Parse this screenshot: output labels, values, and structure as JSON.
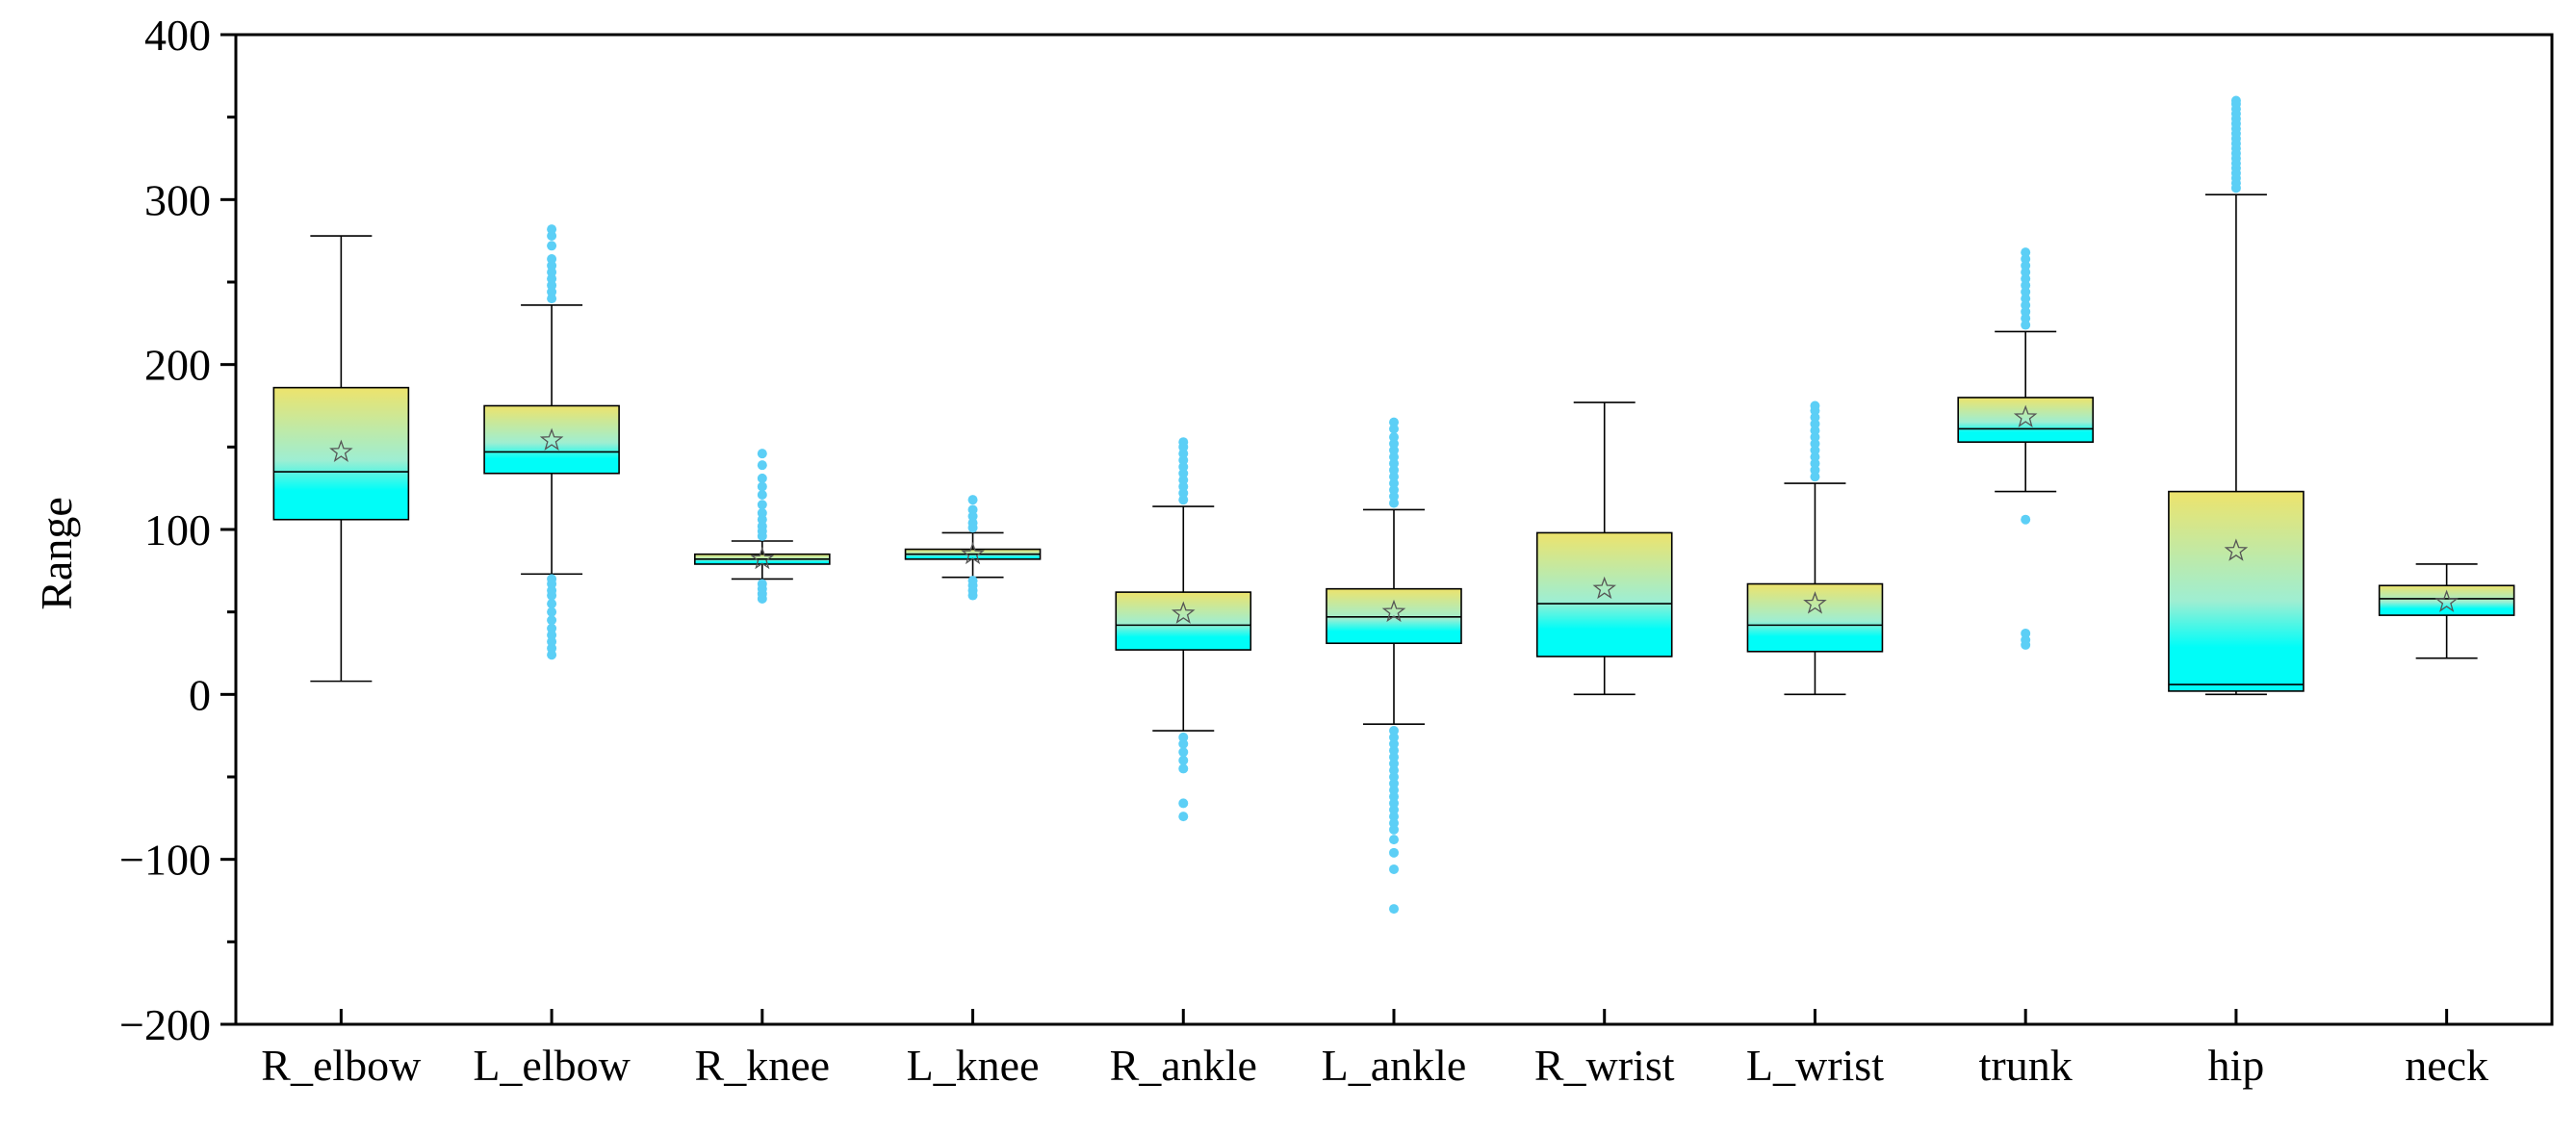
{
  "chart_data": {
    "type": "box",
    "title": "",
    "xlabel": "",
    "ylabel": "Range",
    "ylim": [
      -200,
      400
    ],
    "yticks": [
      "−200",
      "−100",
      "0",
      "100",
      "200",
      "300",
      "400"
    ],
    "ytick_values": [
      -200,
      -100,
      0,
      100,
      200,
      300,
      400
    ],
    "categories": [
      "R_elbow",
      "L_elbow",
      "R_knee",
      "L_knee",
      "R_ankle",
      "L_ankle",
      "R_wrist",
      "L_wrist",
      "trunk",
      "hip",
      "neck"
    ],
    "series": [
      {
        "name": "R_elbow",
        "whisker_low": 8,
        "q1": 106,
        "median": 135,
        "q3": 186,
        "whisker_high": 278,
        "mean": 147,
        "outliers": []
      },
      {
        "name": "L_elbow",
        "whisker_low": 73,
        "q1": 134,
        "median": 147,
        "q3": 175,
        "whisker_high": 236,
        "mean": 154,
        "outliers": [
          24,
          28,
          32,
          36,
          40,
          45,
          50,
          55,
          60,
          63,
          67,
          70,
          240,
          244,
          248,
          252,
          256,
          260,
          264,
          272,
          278,
          282
        ]
      },
      {
        "name": "R_knee",
        "whisker_low": 70,
        "q1": 79,
        "median": 82,
        "q3": 85,
        "whisker_high": 93,
        "mean": 82,
        "outliers": [
          58,
          61,
          64,
          67,
          96,
          99,
          102,
          106,
          110,
          115,
          121,
          126,
          131,
          139,
          146
        ]
      },
      {
        "name": "L_knee",
        "whisker_low": 71,
        "q1": 82,
        "median": 85,
        "q3": 88,
        "whisker_high": 98,
        "mean": 85,
        "outliers": [
          60,
          63,
          66,
          69,
          101,
          104,
          108,
          112,
          118
        ]
      },
      {
        "name": "R_ankle",
        "whisker_low": -22,
        "q1": 27,
        "median": 42,
        "q3": 62,
        "whisker_high": 114,
        "mean": 49,
        "outliers": [
          -74,
          -66,
          -45,
          -40,
          -35,
          -30,
          -26,
          118,
          122,
          126,
          130,
          134,
          138,
          142,
          146,
          150,
          153
        ]
      },
      {
        "name": "L_ankle",
        "whisker_low": -18,
        "q1": 31,
        "median": 47,
        "q3": 64,
        "whisker_high": 112,
        "mean": 50,
        "outliers": [
          -130,
          -106,
          -96,
          -88,
          -82,
          -78,
          -74,
          -70,
          -66,
          -62,
          -58,
          -54,
          -50,
          -46,
          -42,
          -38,
          -34,
          -30,
          -26,
          -22,
          116,
          120,
          124,
          128,
          132,
          136,
          140,
          144,
          148,
          152,
          156,
          161,
          165
        ]
      },
      {
        "name": "R_wrist",
        "whisker_low": 0,
        "q1": 23,
        "median": 55,
        "q3": 98,
        "whisker_high": 177,
        "mean": 64,
        "outliers": []
      },
      {
        "name": "L_wrist",
        "whisker_low": 0,
        "q1": 26,
        "median": 42,
        "q3": 67,
        "whisker_high": 128,
        "mean": 55,
        "outliers": [
          132,
          136,
          140,
          144,
          148,
          152,
          156,
          160,
          164,
          168,
          172,
          175
        ]
      },
      {
        "name": "trunk",
        "whisker_low": 123,
        "q1": 153,
        "median": 161,
        "q3": 180,
        "whisker_high": 220,
        "mean": 168,
        "outliers": [
          30,
          33,
          37,
          106,
          224,
          228,
          232,
          236,
          240,
          244,
          248,
          252,
          256,
          260,
          264,
          268
        ]
      },
      {
        "name": "hip",
        "whisker_low": 0,
        "q1": 2,
        "median": 6,
        "q3": 123,
        "whisker_high": 303,
        "mean": 87,
        "outliers": [
          307,
          310,
          313,
          316,
          319,
          322,
          325,
          328,
          331,
          334,
          337,
          340,
          343,
          346,
          349,
          352,
          355,
          358,
          360
        ]
      },
      {
        "name": "neck",
        "whisker_low": 22,
        "q1": 48,
        "median": 58,
        "q3": 66,
        "whisker_high": 79,
        "mean": 56,
        "outliers": []
      }
    ],
    "colors": {
      "box_top": "#ede36c",
      "box_mid": "#9eeed2",
      "box_bottom": "#00fdf8",
      "outlier": "#5ccff6",
      "mean_marker": "#555555",
      "axis": "#000000"
    },
    "grid": false,
    "legend": "none"
  }
}
